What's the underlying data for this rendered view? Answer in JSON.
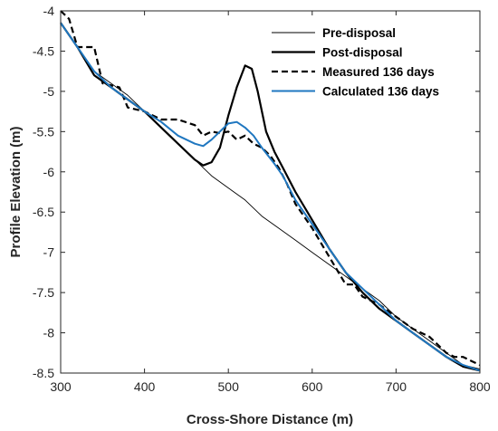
{
  "chart_data": {
    "type": "line",
    "xlabel": "Cross-Shore Distance (m)",
    "ylabel": "Profile Elevation (m)",
    "xlim": [
      300,
      800
    ],
    "ylim": [
      -8.5,
      -4
    ],
    "x_ticks": [
      300,
      400,
      500,
      600,
      700,
      800
    ],
    "y_ticks": [
      -4,
      -4.5,
      -5,
      -5.5,
      -6,
      -6.5,
      -7,
      -7.5,
      -8,
      -8.5
    ],
    "grid": false,
    "legend_position": "top-right",
    "series": [
      {
        "name": "Pre-disposal",
        "color": "#000000",
        "style": "thin-solid",
        "points": [
          [
            300,
            -4.15
          ],
          [
            320,
            -4.45
          ],
          [
            340,
            -4.75
          ],
          [
            360,
            -4.9
          ],
          [
            380,
            -5.05
          ],
          [
            400,
            -5.25
          ],
          [
            420,
            -5.45
          ],
          [
            440,
            -5.65
          ],
          [
            460,
            -5.85
          ],
          [
            480,
            -6.05
          ],
          [
            500,
            -6.2
          ],
          [
            520,
            -6.35
          ],
          [
            540,
            -6.55
          ],
          [
            560,
            -6.7
          ],
          [
            580,
            -6.85
          ],
          [
            600,
            -7.0
          ],
          [
            620,
            -7.15
          ],
          [
            640,
            -7.3
          ],
          [
            660,
            -7.45
          ],
          [
            680,
            -7.6
          ],
          [
            700,
            -7.8
          ],
          [
            720,
            -7.95
          ],
          [
            740,
            -8.1
          ],
          [
            760,
            -8.25
          ],
          [
            780,
            -8.4
          ],
          [
            800,
            -8.45
          ]
        ]
      },
      {
        "name": "Post-disposal",
        "color": "#000000",
        "style": "thick-solid",
        "points": [
          [
            300,
            -4.15
          ],
          [
            320,
            -4.45
          ],
          [
            340,
            -4.8
          ],
          [
            360,
            -4.95
          ],
          [
            380,
            -5.1
          ],
          [
            400,
            -5.25
          ],
          [
            420,
            -5.45
          ],
          [
            440,
            -5.65
          ],
          [
            460,
            -5.85
          ],
          [
            470,
            -5.92
          ],
          [
            480,
            -5.88
          ],
          [
            490,
            -5.7
          ],
          [
            500,
            -5.3
          ],
          [
            510,
            -4.95
          ],
          [
            520,
            -4.68
          ],
          [
            528,
            -4.72
          ],
          [
            535,
            -5.0
          ],
          [
            545,
            -5.5
          ],
          [
            555,
            -5.75
          ],
          [
            565,
            -5.95
          ],
          [
            580,
            -6.25
          ],
          [
            600,
            -6.6
          ],
          [
            620,
            -6.95
          ],
          [
            640,
            -7.25
          ],
          [
            660,
            -7.5
          ],
          [
            680,
            -7.7
          ],
          [
            700,
            -7.85
          ],
          [
            720,
            -8.0
          ],
          [
            740,
            -8.15
          ],
          [
            760,
            -8.3
          ],
          [
            780,
            -8.42
          ],
          [
            800,
            -8.47
          ]
        ]
      },
      {
        "name": "Measured 136 days",
        "color": "#000000",
        "style": "dashed",
        "points": [
          [
            300,
            -4.0
          ],
          [
            310,
            -4.1
          ],
          [
            320,
            -4.45
          ],
          [
            340,
            -4.45
          ],
          [
            350,
            -4.9
          ],
          [
            370,
            -4.95
          ],
          [
            380,
            -5.2
          ],
          [
            400,
            -5.25
          ],
          [
            420,
            -5.35
          ],
          [
            440,
            -5.35
          ],
          [
            460,
            -5.42
          ],
          [
            470,
            -5.55
          ],
          [
            480,
            -5.5
          ],
          [
            490,
            -5.52
          ],
          [
            500,
            -5.5
          ],
          [
            510,
            -5.6
          ],
          [
            520,
            -5.55
          ],
          [
            530,
            -5.65
          ],
          [
            540,
            -5.7
          ],
          [
            550,
            -5.8
          ],
          [
            560,
            -5.95
          ],
          [
            570,
            -6.15
          ],
          [
            580,
            -6.4
          ],
          [
            600,
            -6.7
          ],
          [
            620,
            -7.05
          ],
          [
            640,
            -7.4
          ],
          [
            650,
            -7.4
          ],
          [
            660,
            -7.55
          ],
          [
            680,
            -7.65
          ],
          [
            700,
            -7.8
          ],
          [
            720,
            -7.95
          ],
          [
            740,
            -8.05
          ],
          [
            760,
            -8.25
          ],
          [
            770,
            -8.3
          ],
          [
            780,
            -8.3
          ],
          [
            790,
            -8.35
          ],
          [
            800,
            -8.4
          ]
        ]
      },
      {
        "name": "Calculated 136 days",
        "color": "#1f77c0",
        "style": "solid",
        "points": [
          [
            300,
            -4.15
          ],
          [
            320,
            -4.45
          ],
          [
            340,
            -4.75
          ],
          [
            360,
            -4.95
          ],
          [
            380,
            -5.1
          ],
          [
            400,
            -5.25
          ],
          [
            420,
            -5.38
          ],
          [
            440,
            -5.55
          ],
          [
            460,
            -5.65
          ],
          [
            470,
            -5.68
          ],
          [
            480,
            -5.6
          ],
          [
            490,
            -5.5
          ],
          [
            500,
            -5.4
          ],
          [
            510,
            -5.38
          ],
          [
            520,
            -5.45
          ],
          [
            530,
            -5.55
          ],
          [
            540,
            -5.7
          ],
          [
            555,
            -5.9
          ],
          [
            565,
            -6.05
          ],
          [
            580,
            -6.35
          ],
          [
            600,
            -6.65
          ],
          [
            620,
            -6.95
          ],
          [
            640,
            -7.25
          ],
          [
            660,
            -7.45
          ],
          [
            680,
            -7.65
          ],
          [
            700,
            -7.85
          ],
          [
            720,
            -8.0
          ],
          [
            740,
            -8.15
          ],
          [
            760,
            -8.3
          ],
          [
            780,
            -8.4
          ],
          [
            800,
            -8.47
          ]
        ]
      }
    ]
  }
}
